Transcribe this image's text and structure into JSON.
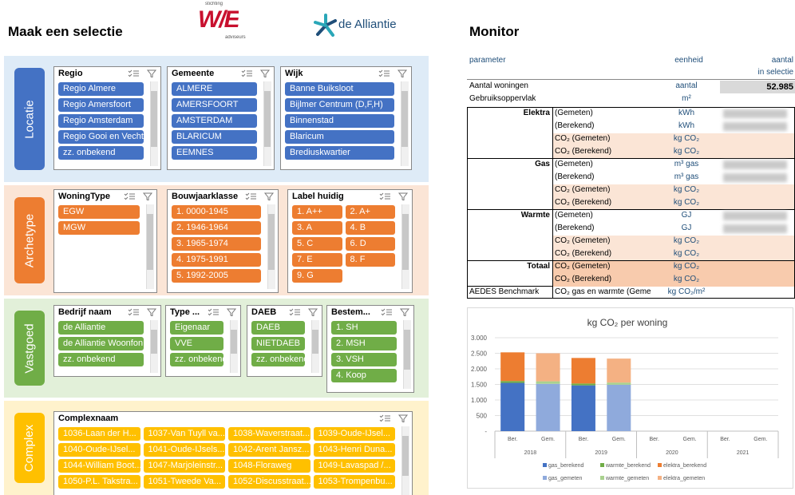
{
  "header": {
    "title": "Maak een selectie",
    "logo_we": {
      "top": "stichting",
      "mark": "W/E",
      "bottom": "adviseurs"
    },
    "logo_alliantie": "de Alliantie",
    "monitor_title": "Monitor"
  },
  "sections": [
    {
      "label": "Locatie",
      "slicers": [
        {
          "title": "Regio",
          "items": [
            "Regio Almere",
            "Regio Amersfoort",
            "Regio Amsterdam",
            "Regio Gooi en Vecht...",
            "zz. onbekend"
          ]
        },
        {
          "title": "Gemeente",
          "items": [
            "ALMERE",
            "AMERSFOORT",
            "AMSTERDAM",
            "BLARICUM",
            "EEMNES"
          ]
        },
        {
          "title": "Wijk",
          "items": [
            "Banne Buiksloot",
            "Bijlmer Centrum (D,F,H)",
            "Binnenstad",
            "Blaricum",
            "Brediuskwartier"
          ]
        }
      ]
    },
    {
      "label": "Archetype",
      "slicers": [
        {
          "title": "WoningType",
          "items": [
            "EGW",
            "MGW"
          ]
        },
        {
          "title": "Bouwjaarklasse",
          "items": [
            "1. 0000-1945",
            "2. 1946-1964",
            "3. 1965-1974",
            "4. 1975-1991",
            "5. 1992-2005"
          ]
        },
        {
          "title": "Label huidig",
          "items": [
            "1. A++",
            "2. A+",
            "3. A",
            "4. B",
            "5. C",
            "6. D",
            "7. E",
            "8. F",
            "9. G"
          ]
        }
      ]
    },
    {
      "label": "Vastgoed",
      "slicers": [
        {
          "title": "Bedrijf naam",
          "items": [
            "de Alliantie",
            "de Alliantie Woonfon...",
            "zz. onbekend"
          ]
        },
        {
          "title": "Type ...",
          "items": [
            "Eigenaar",
            "VVE",
            "zz. onbekend"
          ]
        },
        {
          "title": "DAEB",
          "items": [
            "DAEB",
            "NIETDAEB",
            "zz. onbekend"
          ]
        },
        {
          "title": "Bestem...",
          "items": [
            "1. SH",
            "2. MSH",
            "3. VSH",
            "4. Koop"
          ]
        }
      ]
    },
    {
      "label": "Complex",
      "slicers": [
        {
          "title": "Complexnaam",
          "items": [
            "1036-Laan der H...",
            "1037-Van Tuyll va...",
            "1038-Waverstraat...",
            "1039-Oude-IJsel...",
            "1040-Oude-IJsel...",
            "1041-Oude-IJsels...",
            "1042-Arent Jansz...",
            "1043-Henri Duna...",
            "1044-William Boot...",
            "1047-Marjoleinstr...",
            "1048-Floraweg",
            "1049-Lavaspad /...",
            "1050-P.L. Takstra...",
            "1051-Tweede Va...",
            "1052-Discusstraat...",
            "1053-Trompenbu..."
          ]
        }
      ]
    }
  ],
  "monitor": {
    "header": {
      "parameter": "parameter",
      "unit": "eenheid",
      "value": "aantal",
      "value_sub": "in selectie"
    },
    "top_rows": [
      {
        "label": "Aantal woningen",
        "unit": "aantal",
        "value": "52.985"
      },
      {
        "label": "Gebruiksoppervlak",
        "unit": "m²"
      }
    ],
    "groups": [
      {
        "name": "Elektra",
        "rows": [
          {
            "label": "(Gemeten)",
            "unit": "kWh"
          },
          {
            "label": "(Berekend)",
            "unit": "kWh"
          },
          {
            "label": "CO₂ (Gemeten)",
            "unit": "kg CO₂"
          },
          {
            "label": "CO₂ (Berekend)",
            "unit": "kg CO₂"
          }
        ]
      },
      {
        "name": "Gas",
        "rows": [
          {
            "label": "(Gemeten)",
            "unit": "m³ gas"
          },
          {
            "label": "(Berekend)",
            "unit": "m³ gas"
          },
          {
            "label": "CO₂ (Gemeten)",
            "unit": "kg CO₂"
          },
          {
            "label": "CO₂ (Berekend)",
            "unit": "kg CO₂"
          }
        ]
      },
      {
        "name": "Warmte",
        "rows": [
          {
            "label": "(Gemeten)",
            "unit": "GJ"
          },
          {
            "label": "(Berekend)",
            "unit": "GJ"
          },
          {
            "label": "CO₂ (Gemeten)",
            "unit": "kg CO₂"
          },
          {
            "label": "CO₂ (Berekend)",
            "unit": "kg CO₂"
          }
        ]
      },
      {
        "name": "Totaal",
        "rows": [
          {
            "label": "CO₂ (Gemeten)",
            "unit": "kg CO₂"
          },
          {
            "label": "CO₂ (Berekend)",
            "unit": "kg CO₂"
          }
        ]
      }
    ],
    "benchmark": {
      "label": "AEDES Benchmark",
      "sub": "CO₂ gas en warmte (Geme",
      "unit": "kg CO₂/m²"
    }
  },
  "chart_data": {
    "type": "bar",
    "stacked": true,
    "title": "kg CO₂ per woning",
    "categories": [
      "Ber.",
      "Gem.",
      "Ber.",
      "Gem.",
      "Ber.",
      "Gem.",
      "Ber.",
      "Gem."
    ],
    "groups": [
      "2018",
      "2019",
      "2020",
      "2021"
    ],
    "series": [
      {
        "name": "gas_berekend",
        "color": "#4472c4",
        "values": [
          1550,
          null,
          1470,
          null,
          null,
          null,
          null,
          null
        ]
      },
      {
        "name": "warmte_berekend",
        "color": "#70ad47",
        "values": [
          60,
          null,
          60,
          null,
          null,
          null,
          null,
          null
        ]
      },
      {
        "name": "elektra_berekend",
        "color": "#ed7d31",
        "values": [
          920,
          null,
          820,
          null,
          null,
          null,
          null,
          null
        ]
      },
      {
        "name": "gas_gemeten",
        "color": "#8faadc",
        "values": [
          null,
          1520,
          null,
          1490,
          null,
          null,
          null,
          null
        ]
      },
      {
        "name": "warmte_gemeten",
        "color": "#a9d18e",
        "values": [
          null,
          80,
          null,
          70,
          null,
          null,
          null,
          null
        ]
      },
      {
        "name": "elektra_gemeten",
        "color": "#f4b183",
        "values": [
          null,
          900,
          null,
          770,
          null,
          null,
          null,
          null
        ]
      }
    ],
    "ylim": [
      0,
      3000
    ],
    "yticks": [
      {
        "value": 0,
        "label": "-"
      },
      500,
      {
        "value": 1000,
        "label": "1.000"
      },
      {
        "value": 1500,
        "label": "1.500"
      },
      {
        "value": 2000,
        "label": "2.000"
      },
      {
        "value": 2500,
        "label": "2.500"
      },
      {
        "value": 3000,
        "label": "3.000"
      }
    ],
    "grid": true,
    "legend": "bottom"
  }
}
